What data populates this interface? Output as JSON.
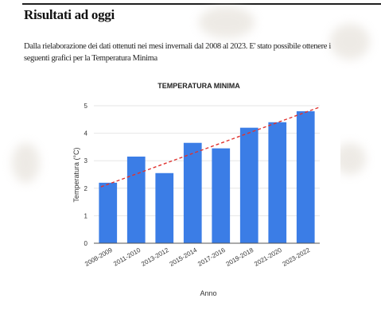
{
  "page": {
    "heading": "Risultati ad oggi",
    "intro": "Dalla rielaborazione dei dati ottenuti nei mesi invernali dal 2008 al 2023. E' stato possibile ottenere i seguenti grafici per la Temperatura Minima"
  },
  "chart_data": {
    "type": "bar",
    "title": "TEMPERATURA MINIMA",
    "xlabel": "Anno",
    "ylabel": "Temperatura (°C)",
    "categories": [
      "2008-2009",
      "2011-2010",
      "2013-2012",
      "2015-2014",
      "2017-2016",
      "2019-2018",
      "2021-2020",
      "2023-2022"
    ],
    "values": [
      2.2,
      3.15,
      2.55,
      3.65,
      3.45,
      4.2,
      4.4,
      4.8
    ],
    "ylim": [
      0,
      5
    ],
    "yticks": [
      0,
      1,
      2,
      3,
      4,
      5
    ],
    "bar_color": "#3b7de6",
    "trendline": {
      "style": "dashed",
      "color": "#e0332f",
      "start": 2.05,
      "end": 4.95
    },
    "grid": true,
    "legend": "none"
  }
}
